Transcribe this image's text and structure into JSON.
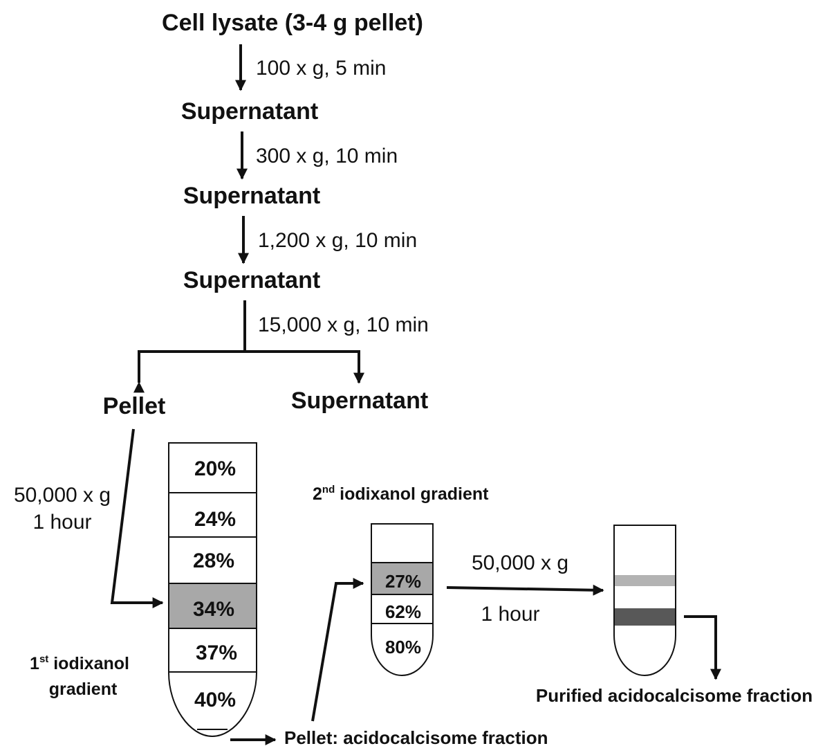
{
  "flow": {
    "start": "Cell lysate (3-4 g pellet)",
    "steps": [
      {
        "condition": "100 x g, 5 min",
        "result": "Supernatant"
      },
      {
        "condition": "300 x g, 10 min",
        "result": "Supernatant"
      },
      {
        "condition": "1,200 x g, 10 min",
        "result": "Supernatant"
      },
      {
        "condition": "15,000 x g, 10 min"
      }
    ],
    "split_left": "Pellet",
    "split_right": "Supernatant"
  },
  "spin1": {
    "speed": "50,000 x g",
    "time": "1 hour"
  },
  "gradient1": {
    "label_prefix": "1",
    "label_sup": "st",
    "label_line1": " iodixanol",
    "label_line2": "gradient",
    "layers": [
      "20%",
      "24%",
      "28%",
      "34%",
      "37%",
      "40%"
    ],
    "highlight": "34%"
  },
  "pellet_output": "Pellet: acidocalcisome fraction",
  "gradient2": {
    "label_prefix": "2",
    "label_sup": "nd",
    "label_rest": " iodixanol gradient",
    "layers": [
      "27%",
      "62%",
      "80%"
    ],
    "highlight": "27%"
  },
  "spin2": {
    "speed": "50,000 x g",
    "time": "1 hour"
  },
  "final_output": "Purified acidocalcisome fraction",
  "colors": {
    "highlight_fill": "#a8a8a8",
    "light_band": "#b3b3b3",
    "dark_band": "#585858",
    "ink": "#111111"
  }
}
